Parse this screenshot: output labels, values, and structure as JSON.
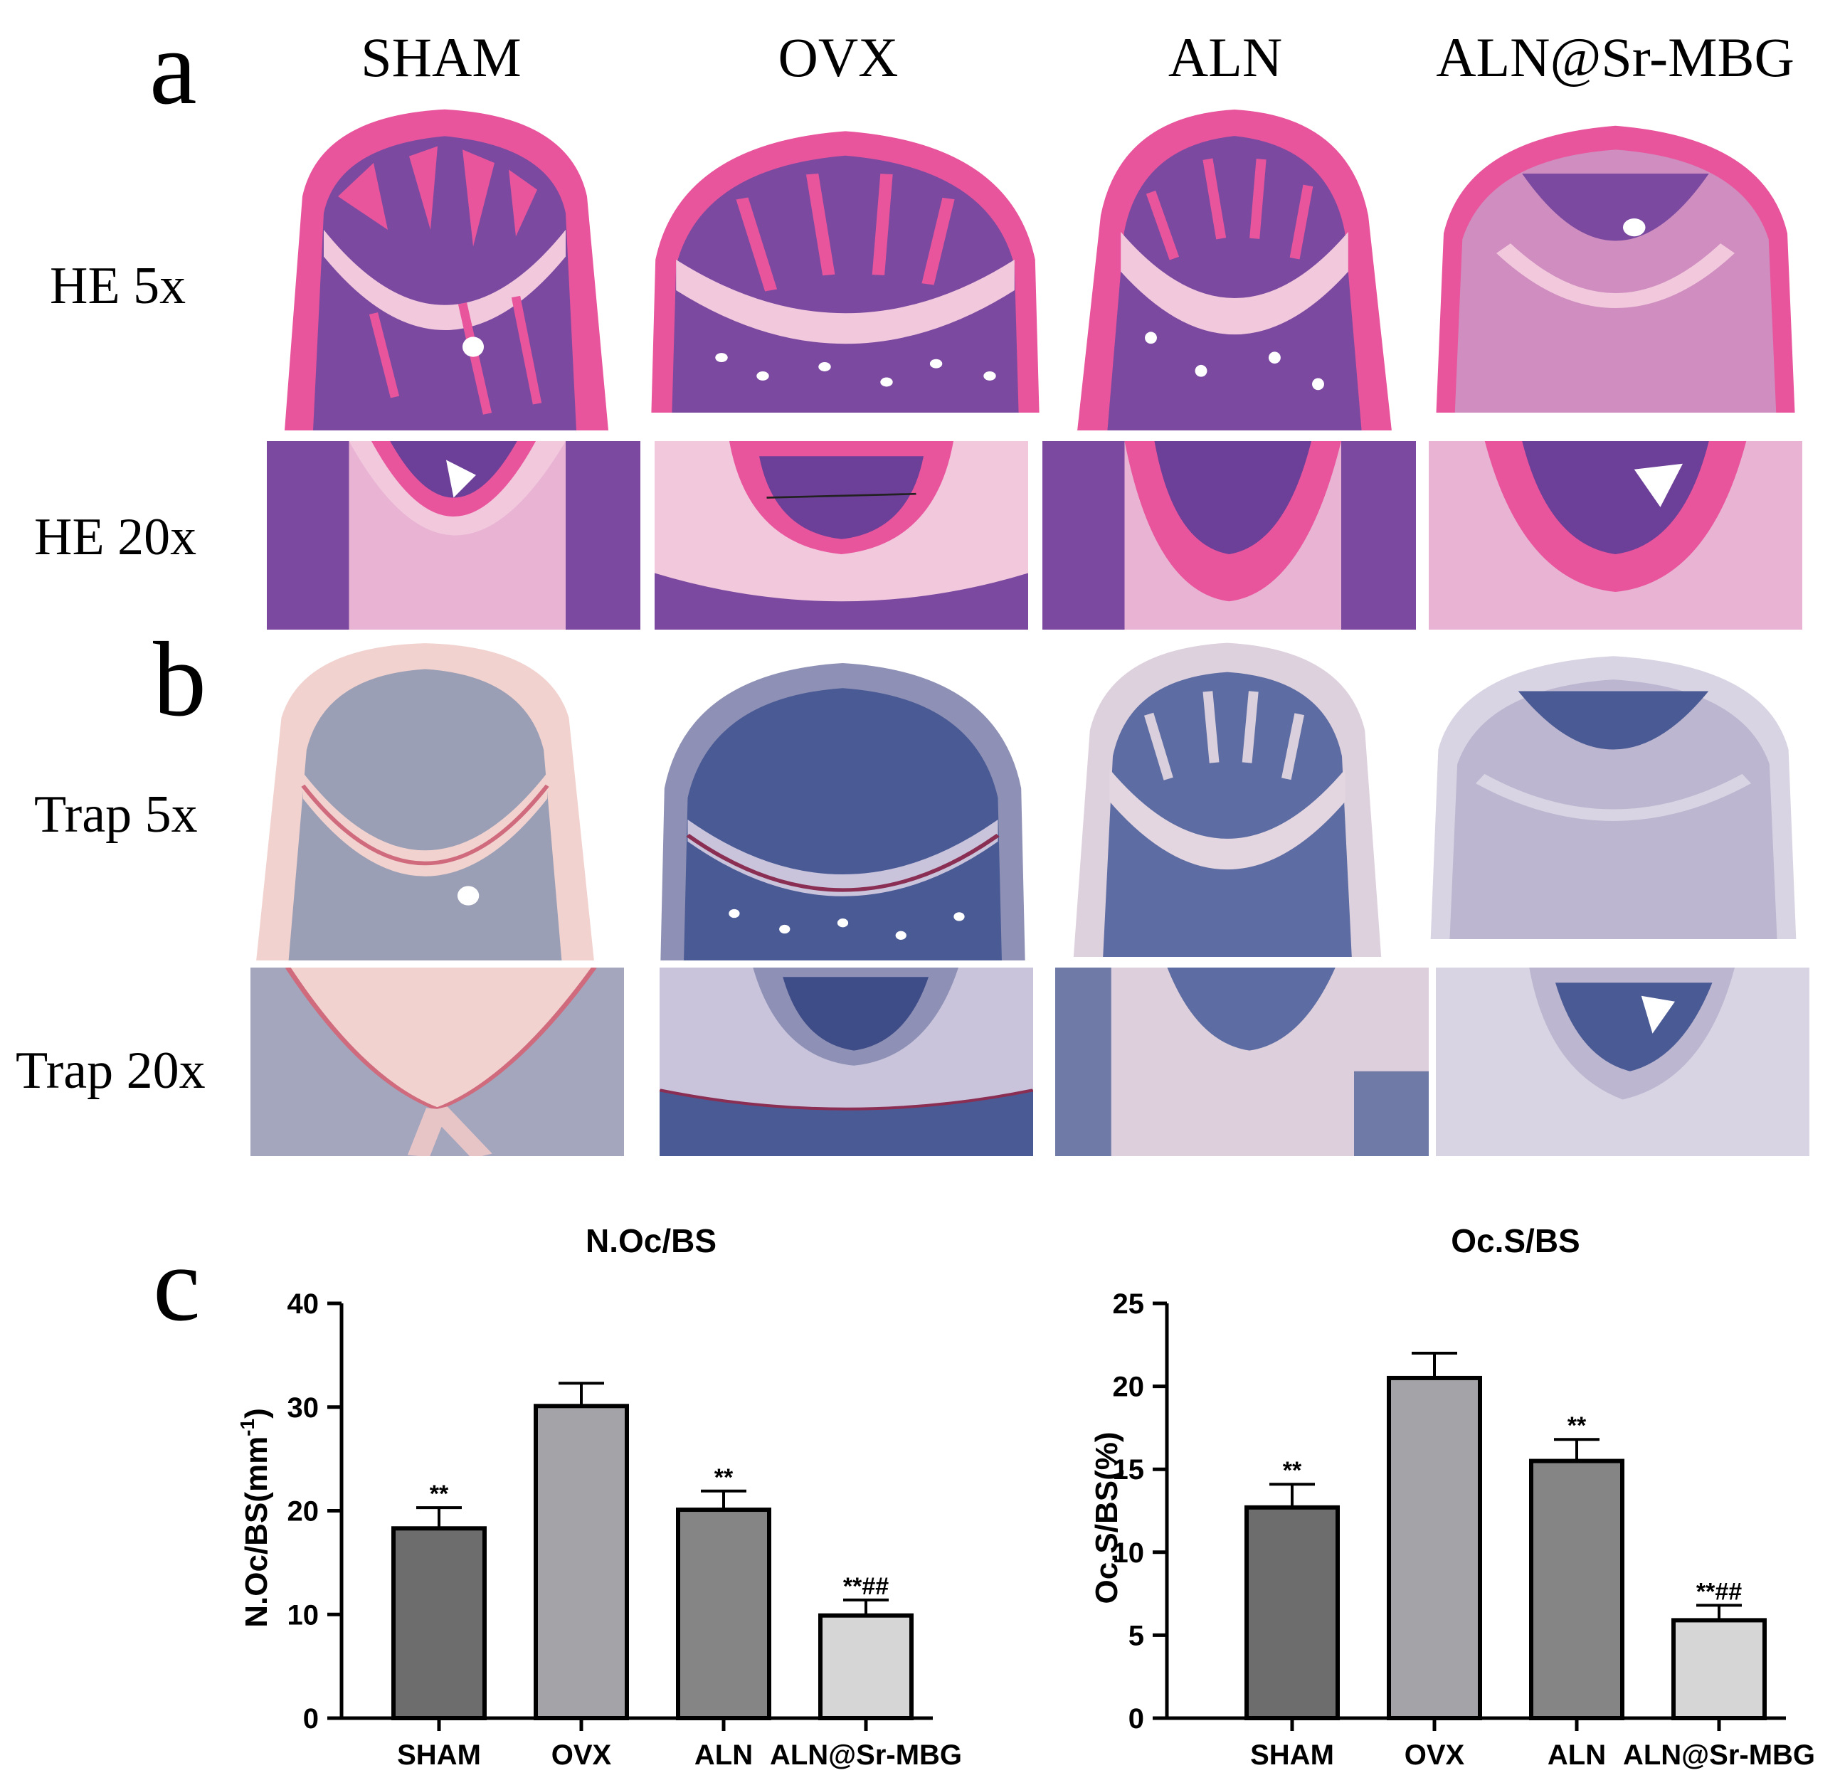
{
  "figure": {
    "panel_letters": {
      "a": "a",
      "b": "b",
      "c": "c"
    },
    "groups": [
      "SHAM",
      "OVX",
      "ALN",
      "ALN@Sr-MBG"
    ],
    "rows": {
      "he5": "HE 5x",
      "he20": "HE 20x",
      "trap5": "Trap 5x",
      "trap20": "Trap 20x"
    },
    "colors": {
      "he_pink": "#e8559c",
      "he_purple": "#6c3f98",
      "he_pale": "#f2c8dd",
      "trap_pink": "#f1d2cf",
      "trap_blue": "#4a5a95",
      "trap_pale": "#d9d4e3",
      "bar_sham": "#6d6d6d",
      "bar_ovx": "#a4a4a8",
      "bar_aln": "#858585",
      "bar_aln_sr": "#d6d6d6"
    }
  },
  "chart_data": [
    {
      "type": "bar",
      "title": "N.Oc/BS",
      "xlabel": "",
      "ylabel": "N.Oc/BS(mm-1)",
      "ylabel_main": "N.Oc/BS(mm",
      "ylabel_sup": "-1",
      "ylabel_tail": ")",
      "categories": [
        "SHAM",
        "OVX",
        "ALN",
        "ALN@Sr-MBG"
      ],
      "values": [
        18.3,
        30.1,
        20.1,
        9.9
      ],
      "errors": [
        2.0,
        2.2,
        1.8,
        1.5
      ],
      "annotations": [
        "**",
        "",
        "**",
        "**##"
      ],
      "ylim": [
        0,
        40
      ],
      "yticks": [
        0,
        10,
        20,
        30,
        40
      ],
      "grid": false
    },
    {
      "type": "bar",
      "title": "Oc.S/BS",
      "xlabel": "",
      "ylabel": "Oc.S/BS(%)",
      "categories": [
        "SHAM",
        "OVX",
        "ALN",
        "ALN@Sr-MBG"
      ],
      "values": [
        12.7,
        20.5,
        15.5,
        5.9
      ],
      "errors": [
        1.4,
        1.5,
        1.3,
        0.9
      ],
      "annotations": [
        "**",
        "",
        "**",
        "**##"
      ],
      "ylim": [
        0,
        25
      ],
      "yticks": [
        0,
        5,
        10,
        15,
        20,
        25
      ],
      "grid": false
    }
  ]
}
